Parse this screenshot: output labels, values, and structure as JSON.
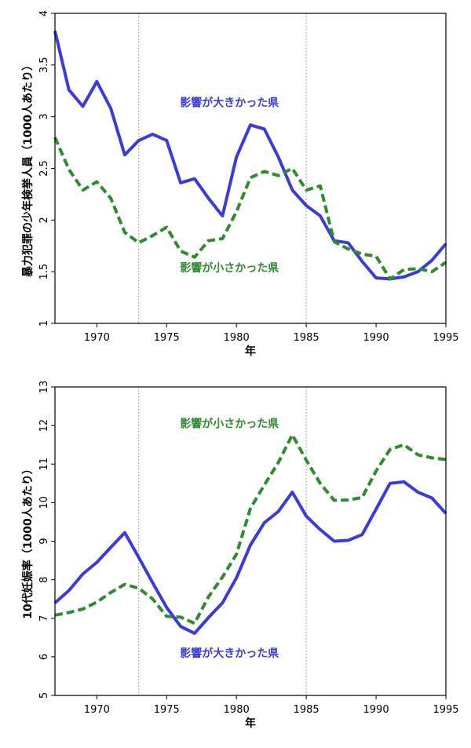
{
  "colors": {
    "affected": "#3b3bdc",
    "unaffected": "#2e8b2e"
  },
  "chart_data": [
    {
      "type": "line",
      "title": "",
      "xlabel": "年",
      "ylabel": "暴力犯罪の少年検挙人員（1000人あたり）",
      "xlim": [
        1967,
        1995
      ],
      "ylim": [
        1,
        4
      ],
      "xticks": [
        1970,
        1975,
        1980,
        1985,
        1990,
        1995
      ],
      "yticks": [
        1,
        1.5,
        2,
        2.5,
        3,
        3.5,
        4
      ],
      "vlines": [
        1973,
        1985
      ],
      "x": [
        1967,
        1968,
        1969,
        1970,
        1971,
        1972,
        1973,
        1974,
        1975,
        1976,
        1977,
        1978,
        1979,
        1980,
        1981,
        1982,
        1983,
        1984,
        1985,
        1986,
        1987,
        1988,
        1989,
        1990,
        1991,
        1992,
        1993,
        1994,
        1995
      ],
      "series": [
        {
          "name": "影響が大きかった県",
          "style": "solid",
          "color": "#3b3bdc",
          "values": [
            3.83,
            3.26,
            3.1,
            3.34,
            3.08,
            2.63,
            2.77,
            2.83,
            2.77,
            2.36,
            2.4,
            2.21,
            2.04,
            2.61,
            2.92,
            2.88,
            2.61,
            2.29,
            2.14,
            2.04,
            1.8,
            1.78,
            1.6,
            1.44,
            1.43,
            1.45,
            1.5,
            1.61,
            1.77
          ]
        },
        {
          "name": "影響が小さかった県",
          "style": "dashed",
          "color": "#2e8b2e",
          "values": [
            2.8,
            2.49,
            2.29,
            2.37,
            2.21,
            1.88,
            1.78,
            1.85,
            1.93,
            1.7,
            1.64,
            1.8,
            1.82,
            2.08,
            2.41,
            2.47,
            2.43,
            2.5,
            2.29,
            2.33,
            1.79,
            1.72,
            1.67,
            1.65,
            1.43,
            1.52,
            1.53,
            1.5,
            1.59
          ]
        }
      ],
      "annotations": [
        {
          "text": "影響が大きかった県",
          "series": 0,
          "x": 1979.5,
          "y": 3.1
        },
        {
          "text": "影響が小さかった県",
          "series": 1,
          "x": 1979.5,
          "y": 1.5
        }
      ]
    },
    {
      "type": "line",
      "title": "",
      "xlabel": "年",
      "ylabel": "10代妊娠率（1000人あたり）",
      "xlim": [
        1967,
        1995
      ],
      "ylim": [
        5,
        13
      ],
      "xticks": [
        1970,
        1975,
        1980,
        1985,
        1990,
        1995
      ],
      "yticks": [
        5,
        6,
        7,
        8,
        9,
        10,
        11,
        12,
        13
      ],
      "vlines": [
        1973,
        1985
      ],
      "x": [
        1967,
        1968,
        1969,
        1970,
        1971,
        1972,
        1973,
        1974,
        1975,
        1976,
        1977,
        1978,
        1979,
        1980,
        1981,
        1982,
        1983,
        1984,
        1985,
        1986,
        1987,
        1988,
        1989,
        1990,
        1991,
        1992,
        1993,
        1994,
        1995
      ],
      "series": [
        {
          "name": "影響が大きかった県",
          "style": "solid",
          "color": "#3b3bdc",
          "values": [
            7.4,
            7.72,
            8.15,
            8.45,
            8.84,
            9.22,
            8.58,
            7.92,
            7.28,
            6.79,
            6.61,
            7.02,
            7.4,
            8.05,
            8.9,
            9.48,
            9.77,
            10.27,
            9.65,
            9.3,
            9.0,
            9.02,
            9.17,
            9.83,
            10.5,
            10.54,
            10.27,
            10.12,
            9.72
          ]
        },
        {
          "name": "影響が小さかった県",
          "style": "dashed",
          "color": "#2e8b2e",
          "values": [
            7.08,
            7.15,
            7.24,
            7.42,
            7.67,
            7.88,
            7.78,
            7.5,
            7.05,
            7.03,
            6.87,
            7.56,
            8.07,
            8.66,
            9.85,
            10.46,
            11.04,
            11.76,
            11.1,
            10.5,
            10.06,
            10.07,
            10.13,
            10.82,
            11.38,
            11.5,
            11.24,
            11.16,
            11.12
          ]
        }
      ],
      "annotations": [
        {
          "text": "影響が小さかった県",
          "series": 1,
          "x": 1979.5,
          "y": 11.95
        },
        {
          "text": "影響が大きかった県",
          "series": 0,
          "x": 1979.5,
          "y": 6.0
        }
      ]
    }
  ]
}
